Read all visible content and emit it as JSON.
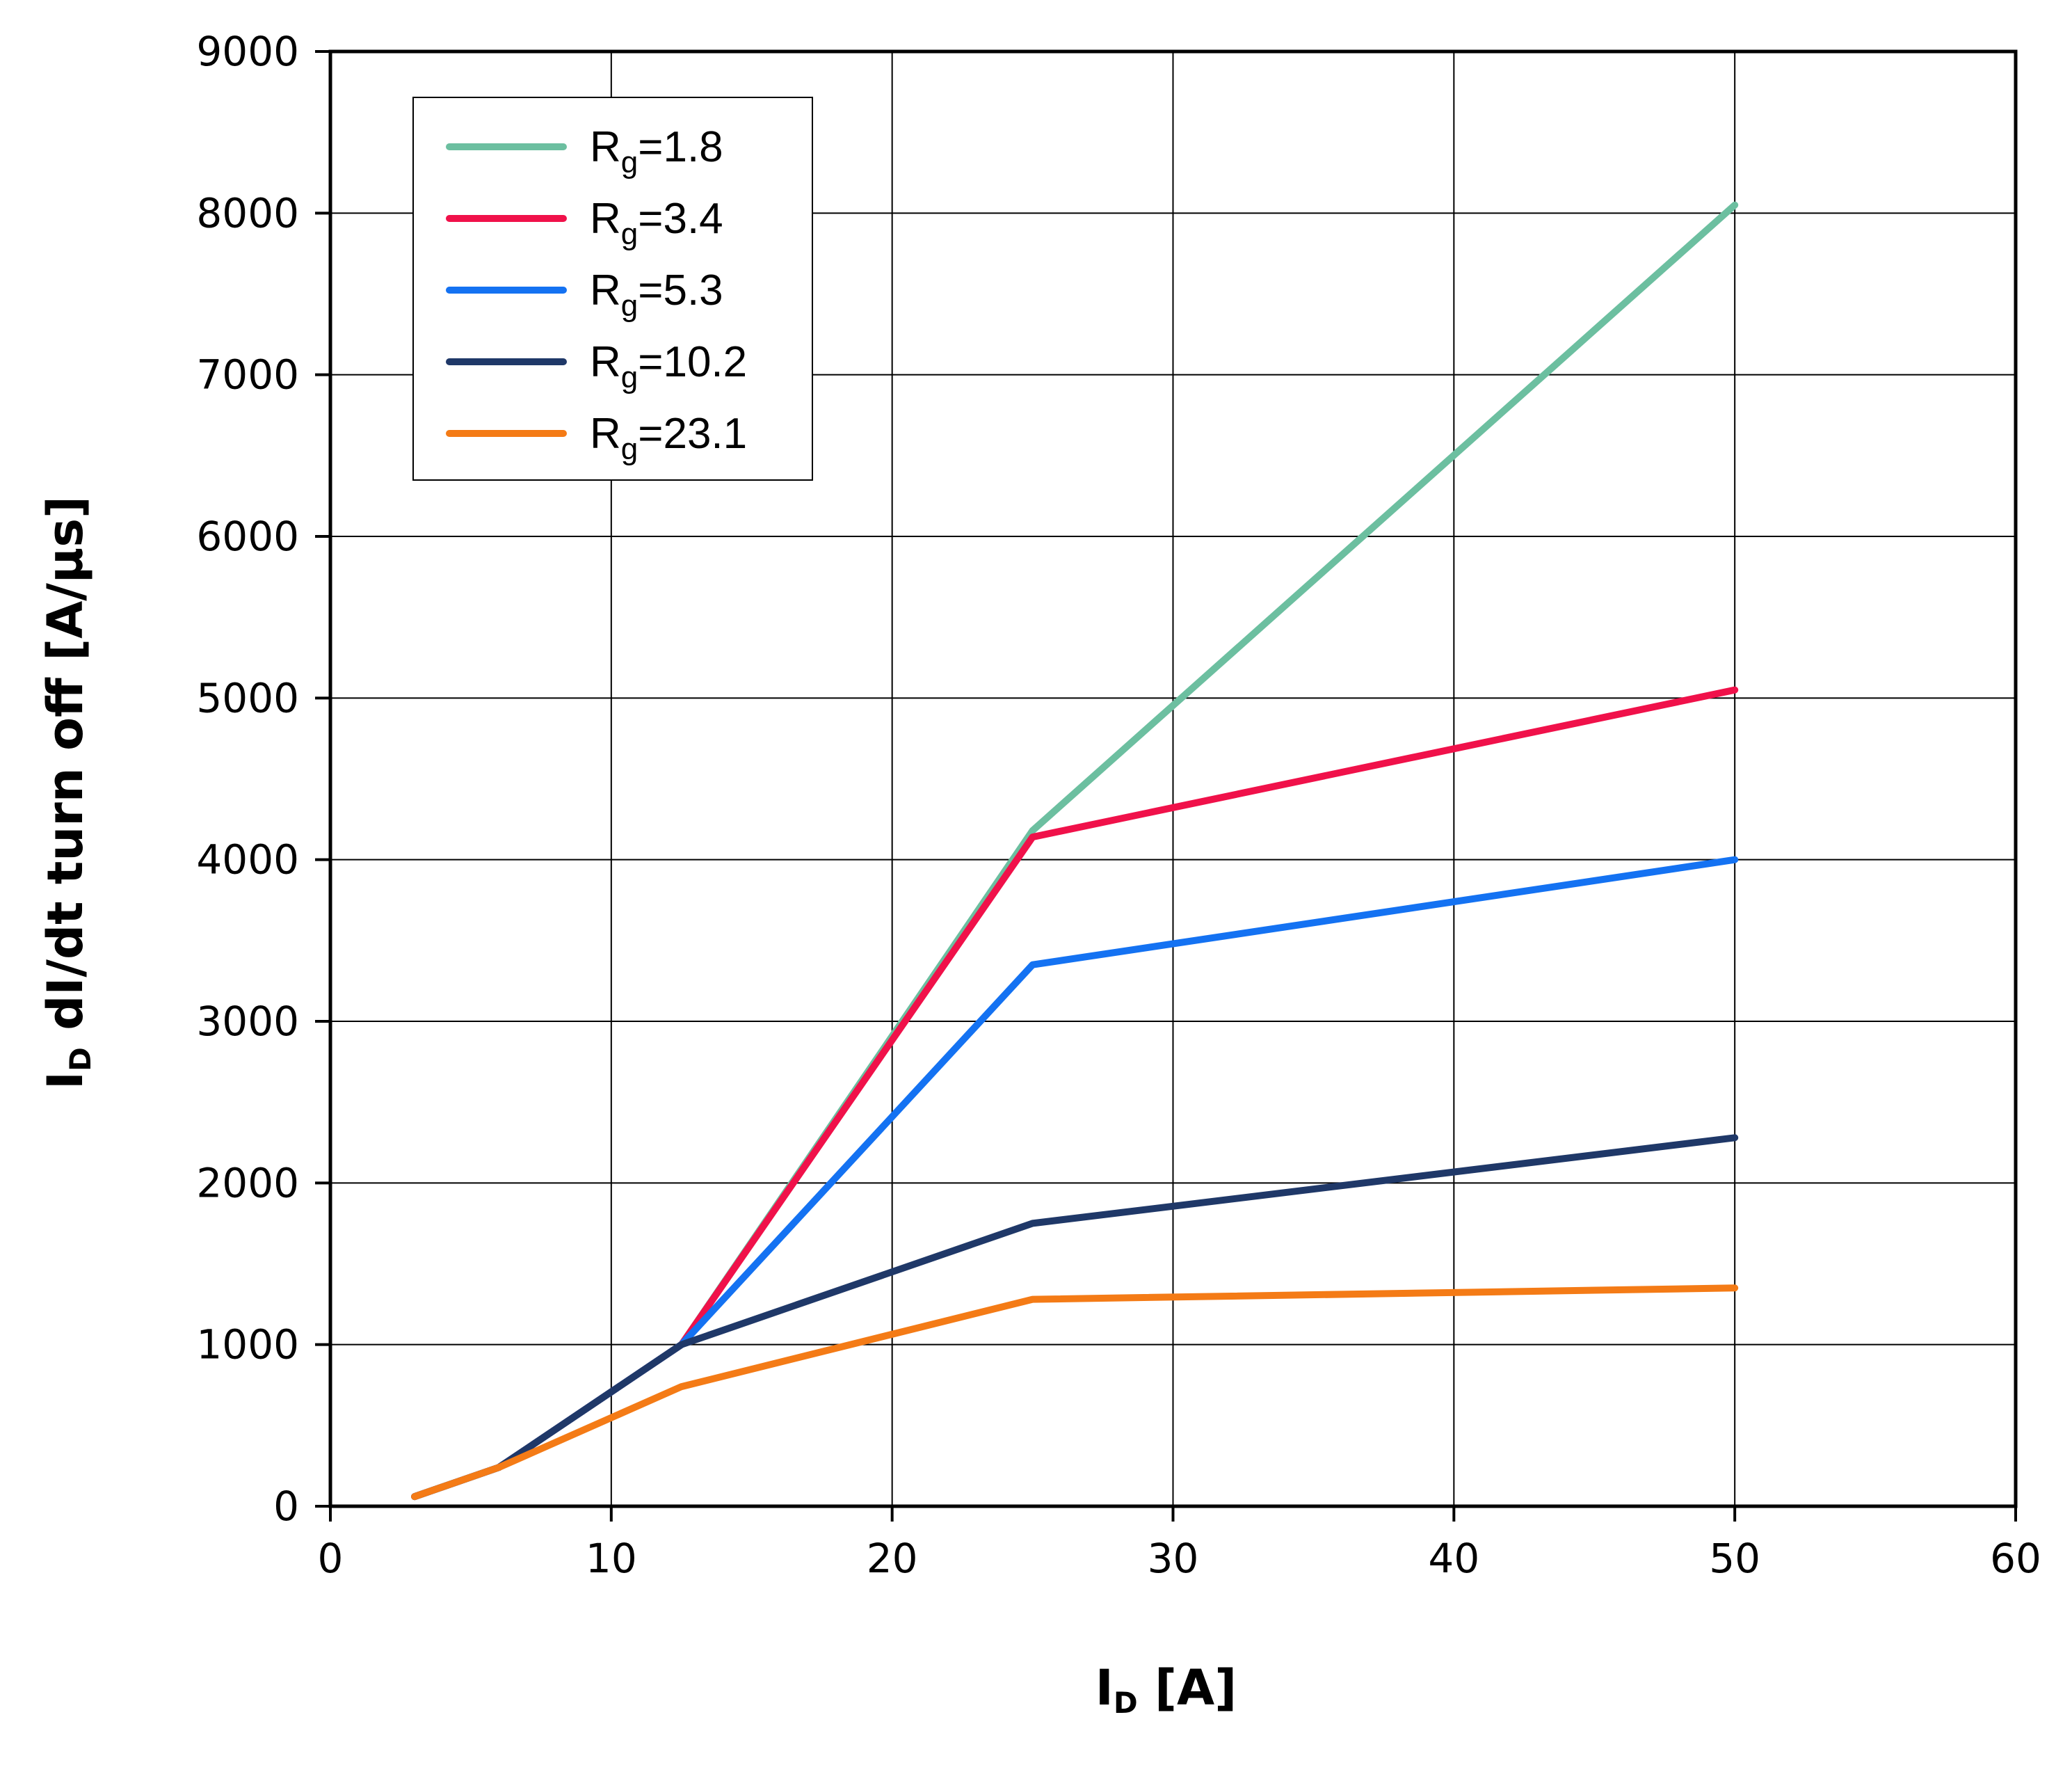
{
  "chart_data": {
    "type": "line",
    "xlabel": {
      "main": "I",
      "sub": "D",
      "rest": " [A]"
    },
    "ylabel": {
      "main": "I",
      "sub": "D",
      "rest": " dI/dt turn off  [A/µs]"
    },
    "xlim": [
      0,
      60
    ],
    "ylim": [
      0,
      9000
    ],
    "xticks": [
      "0",
      "10",
      "20",
      "30",
      "40",
      "50",
      "60"
    ],
    "yticks": [
      "0",
      "1000",
      "2000",
      "3000",
      "4000",
      "5000",
      "6000",
      "7000",
      "8000",
      "9000"
    ],
    "grid": true,
    "legend_position": "top-left",
    "series": [
      {
        "name": "R",
        "name_sub": "g",
        "name_rest": "=1.8",
        "color": "#6cbfa0",
        "x": [
          3,
          6,
          12.5,
          25,
          50
        ],
        "y": [
          60,
          240,
          1000,
          4180,
          8050
        ]
      },
      {
        "name": "R",
        "name_sub": "g",
        "name_rest": "=3.4",
        "color": "#f0114a",
        "x": [
          3,
          6,
          12.5,
          25,
          50
        ],
        "y": [
          60,
          240,
          1000,
          4140,
          5050
        ]
      },
      {
        "name": "R",
        "name_sub": "g",
        "name_rest": "=5.3",
        "color": "#1472f2",
        "x": [
          3,
          6,
          12.5,
          25,
          50
        ],
        "y": [
          60,
          240,
          1000,
          3350,
          4000
        ]
      },
      {
        "name": "R",
        "name_sub": "g",
        "name_rest": "=10.2",
        "color": "#1f3868",
        "x": [
          3,
          6,
          12.5,
          25,
          50
        ],
        "y": [
          60,
          240,
          1000,
          1750,
          2280
        ]
      },
      {
        "name": "R",
        "name_sub": "g",
        "name_rest": "=23.1",
        "color": "#f47b16",
        "x": [
          3,
          6,
          12.5,
          25,
          50
        ],
        "y": [
          60,
          240,
          740,
          1280,
          1350
        ]
      }
    ]
  }
}
